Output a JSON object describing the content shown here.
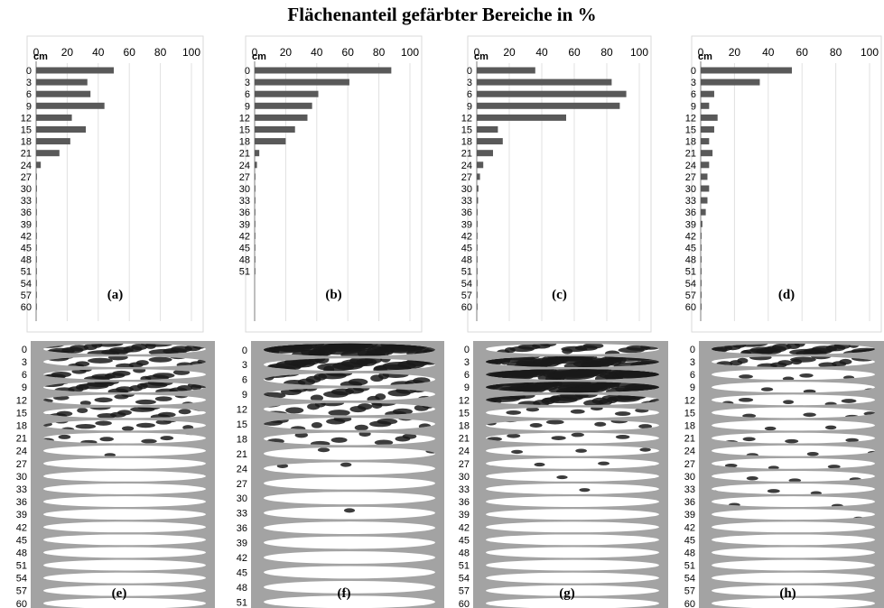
{
  "title": "Flächenanteil gefärbter Bereiche in %",
  "colors": {
    "bar": "#595959",
    "grid": "#e0e0e0",
    "axis": "#7f7f7f",
    "profile_bg": "#a3a3a3",
    "slice": "#ffffff",
    "stain": "#1a1a1a"
  },
  "chart_data": [
    {
      "type": "bar",
      "orientation": "horizontal",
      "panel": "(a)",
      "ylabel": "cm",
      "xlim": [
        0,
        100
      ],
      "xticks": [
        0,
        20,
        40,
        60,
        80,
        100
      ],
      "categories": [
        "0",
        "3",
        "6",
        "9",
        "12",
        "15",
        "18",
        "21",
        "24",
        "27",
        "30",
        "33",
        "36",
        "39",
        "42",
        "45",
        "48",
        "51",
        "54",
        "57",
        "60"
      ],
      "values": [
        50,
        33,
        35,
        44,
        23,
        32,
        22,
        15,
        3,
        0.5,
        0.5,
        0.3,
        0.3,
        0.3,
        0.2,
        0.2,
        0.2,
        0.2,
        0.2,
        0.2,
        0.2
      ]
    },
    {
      "type": "bar",
      "orientation": "horizontal",
      "panel": "(b)",
      "ylabel": "cm",
      "xlim": [
        0,
        100
      ],
      "xticks": [
        0,
        20,
        40,
        60,
        80,
        100
      ],
      "categories": [
        "0",
        "3",
        "6",
        "9",
        "12",
        "15",
        "18",
        "21",
        "24",
        "27",
        "30",
        "33",
        "36",
        "39",
        "42",
        "45",
        "48",
        "51"
      ],
      "values": [
        88,
        61,
        41,
        37,
        34,
        26,
        20,
        3,
        1.5,
        0.5,
        0.5,
        0.5,
        0.3,
        0.3,
        0.3,
        0.3,
        0.3,
        0.3
      ]
    },
    {
      "type": "bar",
      "orientation": "horizontal",
      "panel": "(c)",
      "ylabel": "cm",
      "xlim": [
        0,
        100
      ],
      "xticks": [
        0,
        20,
        40,
        60,
        80,
        100
      ],
      "categories": [
        "0",
        "3",
        "6",
        "9",
        "12",
        "15",
        "18",
        "21",
        "24",
        "27",
        "30",
        "33",
        "36",
        "39",
        "42",
        "45",
        "48",
        "51",
        "54",
        "57",
        "60"
      ],
      "values": [
        36,
        83,
        92,
        88,
        55,
        13,
        16,
        10,
        4,
        2,
        1,
        0.8,
        0.5,
        0.5,
        0.3,
        0.3,
        0.3,
        0.3,
        0.3,
        0.3,
        0.3
      ]
    },
    {
      "type": "bar",
      "orientation": "horizontal",
      "panel": "(d)",
      "ylabel": "cm",
      "xlim": [
        0,
        100
      ],
      "xticks": [
        0,
        20,
        40,
        60,
        80,
        100
      ],
      "categories": [
        "0",
        "3",
        "6",
        "9",
        "12",
        "15",
        "18",
        "21",
        "24",
        "27",
        "30",
        "33",
        "36",
        "39",
        "42",
        "45",
        "48",
        "51",
        "54",
        "57",
        "60"
      ],
      "values": [
        54,
        35,
        8,
        5,
        10,
        8,
        5,
        7,
        5,
        4,
        5,
        4,
        3,
        1,
        0.5,
        0.5,
        0.5,
        0.5,
        0.5,
        0.5,
        0.5
      ]
    }
  ],
  "profiles": [
    {
      "panel": "(e)",
      "depths": [
        "0",
        "3",
        "6",
        "9",
        "12",
        "15",
        "18",
        "21",
        "24",
        "27",
        "30",
        "33",
        "36",
        "39",
        "42",
        "45",
        "48",
        "51",
        "54",
        "57",
        "60"
      ],
      "stain": [
        0.5,
        0.33,
        0.35,
        0.44,
        0.23,
        0.32,
        0.22,
        0.15,
        0.03,
        0,
        0,
        0,
        0,
        0,
        0,
        0,
        0,
        0,
        0,
        0,
        0
      ]
    },
    {
      "panel": "(f)",
      "depths": [
        "0",
        "3",
        "6",
        "9",
        "12",
        "15",
        "18",
        "21",
        "24",
        "27",
        "30",
        "33",
        "36",
        "39",
        "42",
        "45",
        "48",
        "51"
      ],
      "stain": [
        0.88,
        0.61,
        0.41,
        0.37,
        0.34,
        0.26,
        0.2,
        0.03,
        0.015,
        0,
        0,
        0.01,
        0,
        0,
        0,
        0,
        0,
        0
      ]
    },
    {
      "panel": "(g)",
      "depths": [
        "0",
        "3",
        "6",
        "9",
        "12",
        "15",
        "18",
        "21",
        "24",
        "27",
        "30",
        "33",
        "36",
        "39",
        "42",
        "45",
        "48",
        "51",
        "54",
        "57",
        "60"
      ],
      "stain": [
        0.36,
        0.83,
        0.92,
        0.88,
        0.55,
        0.13,
        0.16,
        0.1,
        0.04,
        0.02,
        0.01,
        0.008,
        0,
        0,
        0,
        0,
        0,
        0,
        0,
        0,
        0
      ]
    },
    {
      "panel": "(h)",
      "depths": [
        "0",
        "3",
        "6",
        "9",
        "12",
        "15",
        "18",
        "21",
        "24",
        "27",
        "30",
        "33",
        "36",
        "39",
        "42",
        "45",
        "48",
        "51",
        "54",
        "57",
        "60"
      ],
      "stain": [
        0.54,
        0.35,
        0.08,
        0.05,
        0.1,
        0.08,
        0.05,
        0.07,
        0.05,
        0.04,
        0.05,
        0.04,
        0.03,
        0.01,
        0,
        0,
        0,
        0,
        0,
        0,
        0
      ]
    }
  ]
}
